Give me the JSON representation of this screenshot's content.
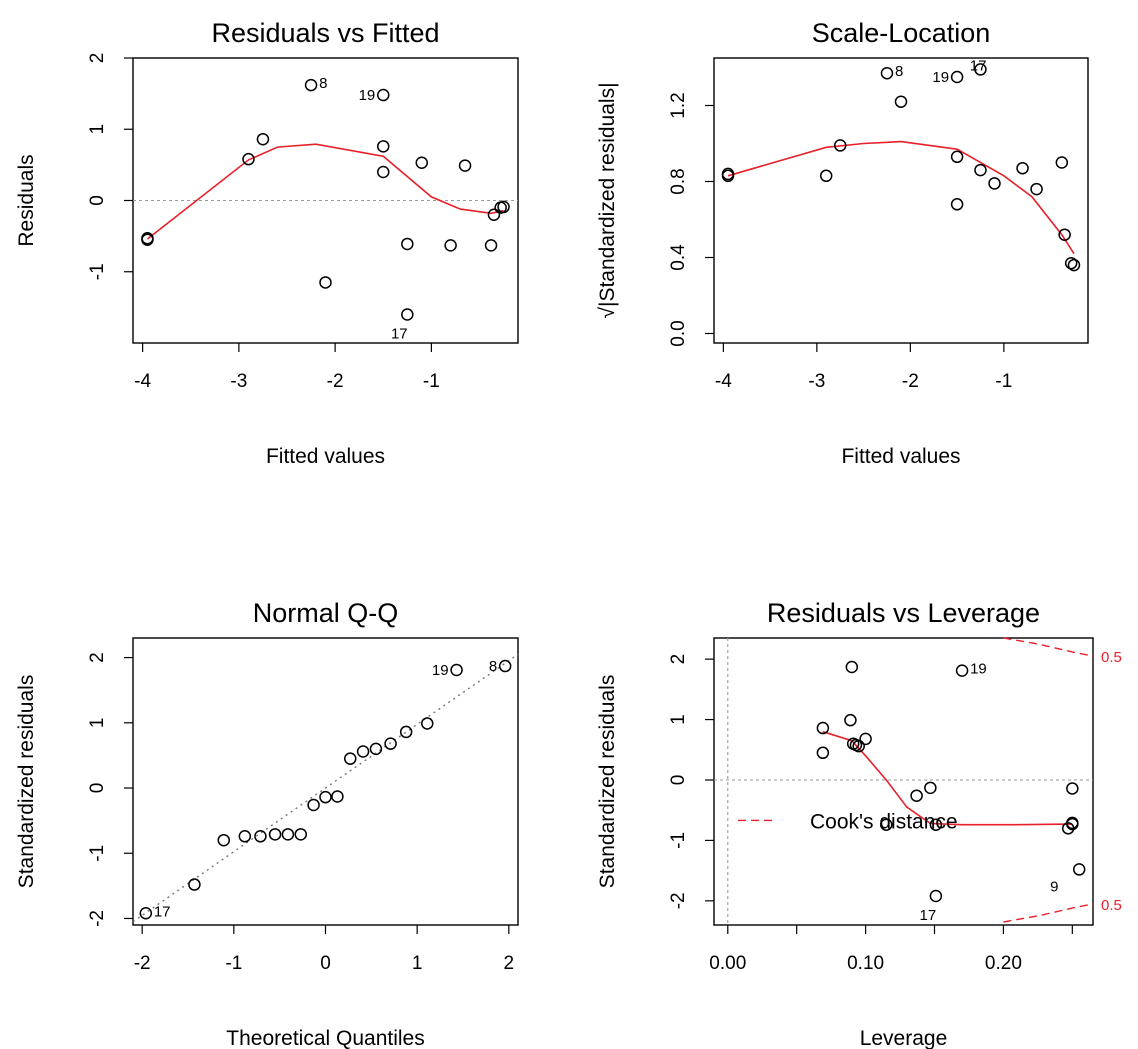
{
  "chart_data": [
    {
      "type": "scatter",
      "title": "Residuals vs Fitted",
      "xlabel": "Fitted values",
      "ylabel": "Residuals",
      "xlim": [
        -4.1,
        -0.1
      ],
      "ylim": [
        -2.0,
        2.0
      ],
      "xticks": [
        -4,
        -3,
        -2,
        -1
      ],
      "yticks": [
        -1,
        0,
        1,
        2
      ],
      "hline": 0,
      "points": {
        "x": [
          -3.95,
          -3.95,
          -2.9,
          -2.75,
          -2.25,
          -1.5,
          -1.5,
          -1.5,
          -2.1,
          -1.25,
          -1.25,
          -1.1,
          -0.8,
          -0.65,
          -0.38,
          -0.35,
          -0.28,
          -0.25
        ],
        "y": [
          -0.55,
          -0.53,
          0.58,
          0.86,
          1.62,
          1.48,
          0.76,
          0.4,
          -1.15,
          -1.6,
          -0.61,
          0.53,
          -0.63,
          0.49,
          -0.63,
          -0.2,
          -0.1,
          -0.09
        ]
      },
      "smooth": {
        "x": [
          -3.95,
          -2.9,
          -2.6,
          -2.2,
          -1.5,
          -1.0,
          -0.7,
          -0.38,
          -0.25
        ],
        "y": [
          -0.54,
          0.57,
          0.75,
          0.79,
          0.62,
          0.05,
          -0.12,
          -0.18,
          -0.14
        ]
      },
      "labels": [
        {
          "text": "8",
          "x": -2.25,
          "y": 1.62,
          "side": "right"
        },
        {
          "text": "19",
          "x": -1.5,
          "y": 1.48,
          "side": "left"
        },
        {
          "text": "17",
          "x": -1.25,
          "y": -1.6,
          "side": "below"
        }
      ]
    },
    {
      "type": "scatter",
      "title": "Scale-Location",
      "xlabel": "Fitted values",
      "ylabel": "√|Standardized residuals|",
      "xlim": [
        -4.1,
        -0.1
      ],
      "ylim": [
        -0.05,
        1.45
      ],
      "xticks": [
        -4,
        -3,
        -2,
        -1
      ],
      "yticks": [
        0.0,
        0.4,
        0.8,
        1.2
      ],
      "tick_labels_y": [
        "0.0",
        "0.4",
        "0.8",
        "1.2"
      ],
      "points": {
        "x": [
          -3.95,
          -3.95,
          -2.9,
          -2.75,
          -2.25,
          -2.1,
          -1.5,
          -1.5,
          -1.5,
          -1.25,
          -1.25,
          -1.1,
          -0.8,
          -0.65,
          -0.38,
          -0.35,
          -0.28,
          -0.25
        ],
        "y": [
          0.83,
          0.84,
          0.83,
          0.99,
          1.37,
          1.22,
          0.93,
          0.68,
          1.35,
          1.39,
          0.86,
          0.79,
          0.87,
          0.76,
          0.9,
          0.52,
          0.37,
          0.36
        ]
      },
      "smooth": {
        "x": [
          -3.95,
          -2.9,
          -2.5,
          -2.1,
          -1.5,
          -1.0,
          -0.7,
          -0.38,
          -0.25
        ],
        "y": [
          0.83,
          0.98,
          1.0,
          1.01,
          0.97,
          0.83,
          0.72,
          0.52,
          0.42
        ]
      },
      "labels": [
        {
          "text": "8",
          "x": -2.25,
          "y": 1.37,
          "side": "right"
        },
        {
          "text": "19",
          "x": -1.5,
          "y": 1.35,
          "side": "left"
        },
        {
          "text": "17",
          "x": -1.45,
          "y": 1.4,
          "side": "right"
        }
      ]
    },
    {
      "type": "scatter",
      "title": "Normal Q-Q",
      "xlabel": "Theoretical Quantiles",
      "ylabel": "Standardized residuals",
      "xlim": [
        -2.1,
        2.1
      ],
      "ylim": [
        -2.1,
        2.3
      ],
      "xticks": [
        -2,
        -1,
        0,
        1,
        2
      ],
      "yticks": [
        -2,
        -1,
        0,
        1,
        2
      ],
      "reference_line": {
        "x": [
          -2.1,
          2.1
        ],
        "y": [
          -2.05,
          2.05
        ]
      },
      "points": {
        "x": [
          -1.96,
          -1.43,
          -1.11,
          -0.88,
          -0.71,
          -0.55,
          -0.41,
          -0.27,
          -0.13,
          0.0,
          0.13,
          0.27,
          0.41,
          0.55,
          0.71,
          0.88,
          1.11,
          1.43,
          1.96
        ],
        "y": [
          -1.92,
          -1.48,
          -0.8,
          -0.74,
          -0.74,
          -0.71,
          -0.71,
          -0.71,
          -0.26,
          -0.14,
          -0.13,
          0.45,
          0.56,
          0.6,
          0.68,
          0.86,
          0.99,
          1.81,
          1.87
        ]
      },
      "labels": [
        {
          "text": "17",
          "x": -1.96,
          "y": -1.92,
          "side": "right"
        },
        {
          "text": "19",
          "x": 1.43,
          "y": 1.81,
          "side": "left"
        },
        {
          "text": "8",
          "x": 1.96,
          "y": 1.87,
          "side": "left"
        }
      ]
    },
    {
      "type": "scatter",
      "title": "Residuals vs Leverage",
      "xlabel": "Leverage",
      "ylabel": "Standardized residuals",
      "xlim": [
        -0.01,
        0.265
      ],
      "ylim": [
        -2.4,
        2.35
      ],
      "xticks": [
        0.0,
        0.05,
        0.1,
        0.15,
        0.2,
        0.25
      ],
      "xtick_labels": [
        "0.00",
        "",
        "0.10",
        "",
        "0.20",
        ""
      ],
      "yticks": [
        -2,
        -1,
        0,
        1,
        2
      ],
      "hline": 0,
      "vline": 0,
      "points": {
        "x": [
          0.069,
          0.069,
          0.089,
          0.09,
          0.091,
          0.093,
          0.095,
          0.1,
          0.115,
          0.137,
          0.147,
          0.151,
          0.151,
          0.17,
          0.247,
          0.25,
          0.25,
          0.25,
          0.255
        ],
        "y": [
          0.86,
          0.45,
          0.99,
          1.87,
          0.6,
          0.58,
          0.56,
          0.68,
          -0.74,
          -0.26,
          -0.13,
          -0.74,
          -1.92,
          1.81,
          -0.8,
          -0.71,
          -0.73,
          -0.14,
          -1.48
        ]
      },
      "smooth": {
        "x": [
          0.069,
          0.09,
          0.1,
          0.115,
          0.13,
          0.147,
          0.17,
          0.21,
          0.25
        ],
        "y": [
          0.8,
          0.65,
          0.4,
          0.0,
          -0.45,
          -0.72,
          -0.74,
          -0.74,
          -0.73
        ]
      },
      "cooks_upper": {
        "x": [
          0.2,
          0.225,
          0.25,
          0.265
        ],
        "y": [
          2.35,
          2.25,
          2.12,
          2.05
        ]
      },
      "cooks_lower": {
        "x": [
          0.2,
          0.225,
          0.25,
          0.265
        ],
        "y": [
          -2.35,
          -2.25,
          -2.12,
          -2.05
        ]
      },
      "cooks_labels": [
        "0.5",
        "0.5"
      ],
      "legend": "Cook's distance",
      "labels": [
        {
          "text": "19",
          "x": 0.17,
          "y": 1.81,
          "side": "right"
        },
        {
          "text": "17",
          "x": 0.151,
          "y": -1.92,
          "side": "below"
        },
        {
          "text": "9",
          "x": 0.25,
          "y": -1.48,
          "side": "belowleft"
        }
      ]
    }
  ]
}
